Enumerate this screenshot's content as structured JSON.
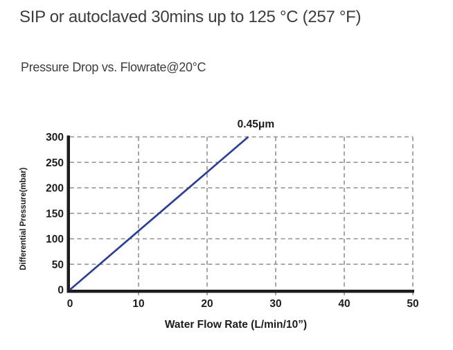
{
  "header": {
    "title": "SIP or autoclaved 30mins up to 125 °C (257 °F)"
  },
  "chart_data": {
    "type": "line",
    "title": "Pressure Drop vs. Flowrate@20°C",
    "xlabel": "Water Flow Rate (L/min/10”)",
    "ylabel": "Differential Pressure(mbar)",
    "xlim": [
      0,
      50
    ],
    "ylim": [
      0,
      300
    ],
    "x_ticks": [
      0,
      10,
      20,
      30,
      40,
      50
    ],
    "y_ticks": [
      0,
      50,
      100,
      150,
      200,
      250,
      300
    ],
    "grid": "dashed",
    "grid_color": "#8f8f8f",
    "axis_color": "#1c1c1c",
    "tick_label_color": "#1c1c1c",
    "legend_position": "above-line-end",
    "series": [
      {
        "name": "0.45μm",
        "x": [
          0,
          26
        ],
        "y": [
          0,
          300
        ],
        "color": "#2c3e98"
      }
    ]
  }
}
